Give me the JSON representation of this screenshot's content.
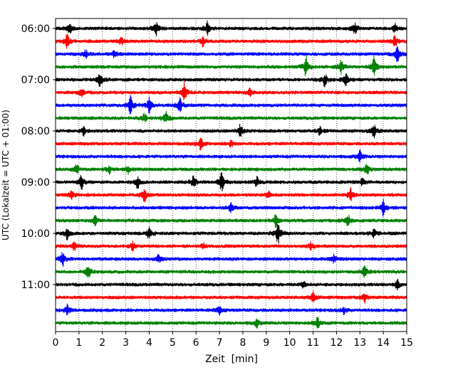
{
  "chart_data": {
    "type": "line",
    "title": "",
    "xlabel": "Zeit  [min]",
    "ylabel": "UTC (Lokalzeit = UTC + 01:00)",
    "xlim": [
      0,
      15
    ],
    "x_ticks": [
      0,
      1,
      2,
      3,
      4,
      5,
      6,
      7,
      8,
      9,
      10,
      11,
      12,
      13,
      14,
      15
    ],
    "x_tick_labels": [
      "0",
      "1",
      "2",
      "3",
      "4",
      "5",
      "6",
      "7",
      "8",
      "9",
      "10",
      "11",
      "12",
      "13",
      "14",
      "15"
    ],
    "vertical_gridlines": "dotted, every minute",
    "trace_interval_minutes": 15,
    "y_tick_labels": [
      "06:00",
      "07:00",
      "08:00",
      "09:00",
      "10:00",
      "11:00"
    ],
    "color_cycle": [
      "#000000",
      "#ff0000",
      "#0000ff",
      "#008000"
    ],
    "traces": [
      {
        "start": "06:00",
        "color": "#000000",
        "events": [
          [
            0.6,
            0.7
          ],
          [
            4.3,
            0.8
          ],
          [
            6.5,
            0.9
          ],
          [
            12.8,
            0.8
          ],
          [
            14.5,
            0.6
          ]
        ]
      },
      {
        "start": "06:15",
        "color": "#ff0000",
        "events": [
          [
            0.5,
            0.9
          ],
          [
            2.8,
            0.5
          ],
          [
            6.3,
            0.6
          ],
          [
            14.5,
            0.7
          ]
        ]
      },
      {
        "start": "06:30",
        "color": "#0000ff",
        "events": [
          [
            1.3,
            0.5
          ],
          [
            2.5,
            0.5
          ],
          [
            14.6,
            0.9
          ]
        ]
      },
      {
        "start": "06:45",
        "color": "#008000",
        "events": [
          [
            10.7,
            1.3
          ],
          [
            12.2,
            0.8
          ],
          [
            13.6,
            1.2
          ]
        ]
      },
      {
        "start": "07:00",
        "color": "#000000",
        "events": [
          [
            1.9,
            0.9
          ],
          [
            11.5,
            0.8
          ],
          [
            12.4,
            0.8
          ]
        ]
      },
      {
        "start": "07:15",
        "color": "#ff0000",
        "events": [
          [
            1.1,
            0.5
          ],
          [
            5.5,
            1.2
          ],
          [
            8.3,
            0.4
          ]
        ]
      },
      {
        "start": "07:30",
        "color": "#0000ff",
        "events": [
          [
            3.2,
            1.2
          ],
          [
            4.0,
            0.9
          ],
          [
            5.3,
            1.0
          ]
        ]
      },
      {
        "start": "07:45",
        "color": "#008000",
        "events": [
          [
            3.8,
            0.5
          ],
          [
            4.7,
            0.8
          ]
        ]
      },
      {
        "start": "08:00",
        "color": "#000000",
        "events": [
          [
            1.2,
            0.5
          ],
          [
            7.9,
            0.8
          ],
          [
            11.3,
            0.6
          ],
          [
            13.6,
            0.9
          ]
        ]
      },
      {
        "start": "08:15",
        "color": "#ff0000",
        "events": [
          [
            6.2,
            0.7
          ],
          [
            7.5,
            0.4
          ]
        ]
      },
      {
        "start": "08:30",
        "color": "#0000ff",
        "events": [
          [
            13.0,
            0.7
          ]
        ]
      },
      {
        "start": "08:45",
        "color": "#008000",
        "events": [
          [
            0.9,
            0.6
          ],
          [
            2.3,
            0.5
          ],
          [
            3.1,
            0.5
          ],
          [
            13.3,
            0.7
          ]
        ]
      },
      {
        "start": "09:00",
        "color": "#000000",
        "events": [
          [
            1.1,
            0.9
          ],
          [
            3.5,
            0.8
          ],
          [
            5.9,
            0.9
          ],
          [
            7.1,
            1.2
          ],
          [
            8.6,
            0.6
          ],
          [
            13.1,
            0.5
          ]
        ]
      },
      {
        "start": "09:15",
        "color": "#ff0000",
        "events": [
          [
            0.7,
            0.6
          ],
          [
            3.8,
            0.9
          ],
          [
            9.1,
            0.5
          ],
          [
            12.6,
            0.8
          ]
        ]
      },
      {
        "start": "09:30",
        "color": "#0000ff",
        "events": [
          [
            7.5,
            0.6
          ],
          [
            14.0,
            0.9
          ]
        ]
      },
      {
        "start": "09:45",
        "color": "#008000",
        "events": [
          [
            1.7,
            0.6
          ],
          [
            9.4,
            0.8
          ],
          [
            12.5,
            0.7
          ]
        ]
      },
      {
        "start": "10:00",
        "color": "#000000",
        "events": [
          [
            0.5,
            0.7
          ],
          [
            4.0,
            0.7
          ],
          [
            9.5,
            1.5
          ],
          [
            13.6,
            0.5
          ]
        ]
      },
      {
        "start": "10:15",
        "color": "#ff0000",
        "events": [
          [
            0.8,
            0.5
          ],
          [
            3.3,
            0.5
          ],
          [
            6.3,
            0.4
          ],
          [
            10.9,
            0.5
          ]
        ]
      },
      {
        "start": "10:30",
        "color": "#0000ff",
        "events": [
          [
            0.3,
            0.9
          ],
          [
            4.4,
            0.5
          ],
          [
            11.9,
            0.5
          ]
        ]
      },
      {
        "start": "10:45",
        "color": "#008000",
        "events": [
          [
            1.4,
            0.9
          ],
          [
            13.2,
            0.8
          ]
        ]
      },
      {
        "start": "11:00",
        "color": "#000000",
        "events": [
          [
            10.6,
            0.6
          ],
          [
            14.6,
            0.6
          ]
        ]
      },
      {
        "start": "11:15",
        "color": "#ff0000",
        "events": [
          [
            11.0,
            0.7
          ],
          [
            13.2,
            0.6
          ]
        ]
      },
      {
        "start": "11:30",
        "color": "#0000ff",
        "events": [
          [
            0.5,
            0.6
          ],
          [
            7.0,
            0.5
          ],
          [
            12.3,
            0.5
          ]
        ]
      },
      {
        "start": "11:45",
        "color": "#008000",
        "events": [
          [
            8.6,
            0.5
          ],
          [
            11.2,
            0.7
          ]
        ]
      }
    ]
  }
}
